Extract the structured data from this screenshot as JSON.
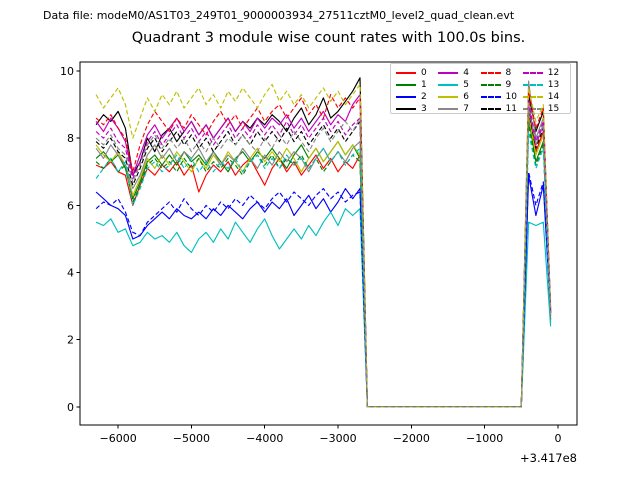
{
  "header": {
    "datafile": "Data file: modeM0/AS1T03_249T01_9000003934_27511cztM0_level2_quad_clean.evt"
  },
  "colors": {
    "background": "#ffffff",
    "axes": "#000000",
    "legend_border": "#cccccc"
  },
  "chart_data": {
    "type": "line",
    "title": "Quadrant 3 module wise count rates with 100.0s bins.",
    "xlabel": "",
    "ylabel": "",
    "x_offset_label": "+3.417e8",
    "xlim": [
      -6520,
      260
    ],
    "ylim": [
      -0.54,
      10.27
    ],
    "grid": false,
    "legend_position": "upper right",
    "x_ticks": [
      {
        "value": -6000,
        "label": "−6000"
      },
      {
        "value": -5000,
        "label": "−5000"
      },
      {
        "value": -4000,
        "label": "−4000"
      },
      {
        "value": -3000,
        "label": "−3000"
      },
      {
        "value": -2000,
        "label": "−2000"
      },
      {
        "value": -1000,
        "label": "−1000"
      },
      {
        "value": 0,
        "label": "0"
      }
    ],
    "y_ticks": [
      {
        "value": 0,
        "label": "0"
      },
      {
        "value": 2,
        "label": "2"
      },
      {
        "value": 4,
        "label": "4"
      },
      {
        "value": 6,
        "label": "6"
      },
      {
        "value": 8,
        "label": "8"
      },
      {
        "value": 10,
        "label": "10"
      }
    ],
    "x_start": -6300,
    "x_step": 100,
    "series": [
      {
        "name": "0",
        "color": "#ff0000",
        "dash": false,
        "values": [
          7.2,
          7.1,
          7.3,
          7.0,
          6.9,
          6.0,
          6.6,
          7.1,
          6.9,
          7.2,
          7.0,
          7.3,
          6.9,
          7.2,
          6.4,
          6.9,
          7.2,
          7.0,
          7.3,
          6.9,
          7.2,
          7.4,
          7.0,
          6.6,
          7.1,
          7.4,
          7.0,
          7.3,
          6.9,
          7.2,
          7.5,
          7.1,
          7.4,
          7.0,
          7.3,
          7.1,
          7.5,
          0,
          0,
          0,
          0,
          0,
          0,
          0,
          0,
          0,
          0,
          0,
          0,
          0,
          0,
          0,
          0,
          0,
          0,
          0,
          0,
          0,
          0,
          8.9,
          7.6,
          8.2,
          2.6
        ]
      },
      {
        "name": "1",
        "color": "#008000",
        "dash": false,
        "values": [
          7.4,
          7.6,
          7.3,
          7.5,
          7.1,
          6.2,
          6.7,
          7.3,
          7.5,
          7.2,
          7.5,
          7.2,
          7.6,
          7.3,
          7.5,
          7.2,
          7.6,
          7.3,
          7.0,
          7.4,
          7.6,
          7.3,
          7.6,
          7.4,
          7.7,
          7.4,
          7.1,
          7.5,
          7.8,
          7.4,
          7.7,
          7.3,
          7.6,
          7.9,
          7.5,
          7.8,
          7.4,
          0,
          0,
          0,
          0,
          0,
          0,
          0,
          0,
          0,
          0,
          0,
          0,
          0,
          0,
          0,
          0,
          0,
          0,
          0,
          0,
          0,
          0,
          8.6,
          7.3,
          7.9,
          2.7
        ]
      },
      {
        "name": "2",
        "color": "#0000ff",
        "dash": false,
        "values": [
          6.4,
          6.2,
          6.0,
          5.9,
          5.7,
          5.0,
          5.1,
          5.4,
          5.6,
          5.8,
          5.6,
          5.9,
          5.7,
          5.6,
          5.8,
          5.6,
          5.9,
          5.7,
          6.0,
          5.8,
          5.6,
          5.9,
          6.1,
          5.8,
          6.1,
          5.9,
          6.2,
          5.7,
          6.0,
          6.3,
          5.9,
          6.2,
          5.8,
          6.1,
          6.5,
          6.2,
          6.5,
          0,
          0,
          0,
          0,
          0,
          0,
          0,
          0,
          0,
          0,
          0,
          0,
          0,
          0,
          0,
          0,
          0,
          0,
          0,
          0,
          0,
          0,
          6.9,
          5.7,
          6.6,
          2.8
        ]
      },
      {
        "name": "3",
        "color": "#000000",
        "dash": false,
        "values": [
          8.4,
          8.7,
          8.5,
          8.8,
          8.3,
          6.9,
          7.3,
          8.0,
          7.6,
          8.1,
          8.3,
          7.9,
          8.2,
          8.5,
          8.1,
          8.4,
          8.0,
          8.3,
          8.6,
          8.2,
          8.5,
          8.3,
          8.6,
          8.4,
          8.7,
          8.5,
          8.2,
          8.6,
          8.9,
          8.4,
          8.7,
          9.2,
          8.6,
          8.8,
          9.1,
          9.4,
          9.8,
          0,
          0,
          0,
          0,
          0,
          0,
          0,
          0,
          0,
          0,
          0,
          0,
          0,
          0,
          0,
          0,
          0,
          0,
          0,
          0,
          0,
          0,
          9.3,
          8.2,
          8.8,
          2.9
        ]
      },
      {
        "name": "4",
        "color": "#bf00bf",
        "dash": false,
        "values": [
          8.5,
          8.2,
          8.6,
          8.3,
          7.9,
          6.9,
          7.5,
          8.1,
          8.4,
          8.0,
          8.3,
          8.6,
          8.2,
          8.5,
          8.1,
          8.4,
          8.0,
          8.3,
          8.6,
          8.2,
          8.5,
          8.2,
          8.6,
          8.3,
          8.6,
          8.4,
          8.7,
          8.3,
          8.6,
          8.2,
          8.5,
          8.8,
          8.4,
          8.7,
          8.5,
          9.0,
          9.3,
          0,
          0,
          0,
          0,
          0,
          0,
          0,
          0,
          0,
          0,
          0,
          0,
          0,
          0,
          0,
          0,
          0,
          0,
          0,
          0,
          0,
          0,
          9.0,
          7.8,
          8.4,
          2.8
        ]
      },
      {
        "name": "5",
        "color": "#00bfbf",
        "dash": false,
        "values": [
          5.5,
          5.4,
          5.6,
          5.2,
          5.3,
          4.8,
          4.9,
          5.2,
          5.0,
          5.1,
          4.9,
          5.2,
          4.8,
          4.6,
          5.0,
          5.2,
          4.9,
          5.3,
          5.0,
          5.5,
          5.2,
          4.9,
          5.3,
          5.6,
          5.1,
          4.7,
          5.0,
          5.3,
          5.0,
          5.4,
          5.1,
          5.5,
          5.8,
          5.4,
          5.9,
          5.7,
          5.9,
          0,
          0,
          0,
          0,
          0,
          0,
          0,
          0,
          0,
          0,
          0,
          0,
          0,
          0,
          0,
          0,
          0,
          0,
          0,
          0,
          0,
          0,
          5.5,
          5.4,
          5.5,
          2.4
        ]
      },
      {
        "name": "6",
        "color": "#bfbf00",
        "dash": false,
        "values": [
          7.8,
          7.5,
          7.3,
          7.6,
          7.2,
          6.3,
          6.8,
          7.4,
          7.1,
          7.5,
          7.2,
          7.6,
          7.3,
          7.0,
          7.4,
          7.1,
          7.5,
          7.2,
          7.6,
          7.3,
          7.0,
          7.4,
          7.7,
          7.3,
          7.6,
          7.3,
          7.7,
          7.4,
          7.0,
          7.4,
          7.7,
          7.3,
          7.6,
          7.9,
          7.5,
          7.8,
          7.5,
          0,
          0,
          0,
          0,
          0,
          0,
          0,
          0,
          0,
          0,
          0,
          0,
          0,
          0,
          0,
          0,
          0,
          0,
          0,
          0,
          0,
          0,
          8.7,
          7.5,
          8.1,
          2.7
        ]
      },
      {
        "name": "7",
        "color": "#888888",
        "dash": false,
        "values": [
          7.7,
          7.4,
          7.8,
          7.5,
          7.2,
          6.5,
          6.9,
          7.5,
          7.8,
          7.4,
          7.7,
          7.3,
          7.6,
          7.4,
          7.7,
          7.3,
          7.6,
          7.2,
          7.5,
          7.3,
          7.7,
          7.4,
          7.1,
          7.5,
          7.2,
          7.6,
          7.3,
          7.6,
          7.4,
          7.0,
          7.4,
          7.7,
          7.3,
          7.6,
          7.3,
          7.7,
          7.9,
          0,
          0,
          0,
          0,
          0,
          0,
          0,
          0,
          0,
          0,
          0,
          0,
          0,
          0,
          0,
          0,
          0,
          0,
          0,
          0,
          0,
          0,
          9.7,
          8.0,
          8.6,
          3.0
        ]
      },
      {
        "name": "8",
        "color": "#ff0000",
        "dash": true,
        "values": [
          8.6,
          8.4,
          8.7,
          8.3,
          8.0,
          7.0,
          7.8,
          8.4,
          8.8,
          8.5,
          8.2,
          8.6,
          8.3,
          8.7,
          8.4,
          8.1,
          8.5,
          8.8,
          8.4,
          8.7,
          8.3,
          8.6,
          8.9,
          8.5,
          8.8,
          9.0,
          8.6,
          8.9,
          9.2,
          8.7,
          9.0,
          8.6,
          9.3,
          8.9,
          9.2,
          8.9,
          9.2,
          0,
          0,
          0,
          0,
          0,
          0,
          0,
          0,
          0,
          0,
          0,
          0,
          0,
          0,
          0,
          0,
          0,
          0,
          0,
          0,
          0,
          0,
          9.4,
          8.3,
          8.9,
          2.9
        ]
      },
      {
        "name": "9",
        "color": "#008000",
        "dash": true,
        "values": [
          7.3,
          7.1,
          7.4,
          7.0,
          7.2,
          6.1,
          6.6,
          7.2,
          7.4,
          7.1,
          7.3,
          7.0,
          7.4,
          7.1,
          7.4,
          7.0,
          7.3,
          7.1,
          7.4,
          7.2,
          6.9,
          7.3,
          7.5,
          7.2,
          7.5,
          7.1,
          7.4,
          7.2,
          7.5,
          7.1,
          7.4,
          7.0,
          7.3,
          7.6,
          7.2,
          7.5,
          7.3,
          0,
          0,
          0,
          0,
          0,
          0,
          0,
          0,
          0,
          0,
          0,
          0,
          0,
          0,
          0,
          0,
          0,
          0,
          0,
          0,
          0,
          0,
          8.4,
          7.2,
          7.8,
          2.6
        ]
      },
      {
        "name": "10",
        "color": "#0000ff",
        "dash": true,
        "values": [
          5.9,
          6.1,
          6.0,
          6.2,
          5.8,
          5.2,
          5.1,
          5.5,
          5.7,
          5.9,
          6.1,
          5.8,
          6.2,
          5.9,
          5.7,
          6.0,
          5.8,
          6.1,
          5.9,
          6.2,
          6.0,
          6.3,
          6.1,
          5.9,
          6.2,
          6.4,
          6.1,
          6.4,
          6.2,
          6.0,
          6.3,
          6.5,
          6.2,
          6.4,
          6.1,
          6.3,
          6.4,
          0,
          0,
          0,
          0,
          0,
          0,
          0,
          0,
          0,
          0,
          0,
          0,
          0,
          0,
          0,
          0,
          0,
          0,
          0,
          0,
          0,
          0,
          7.0,
          6.0,
          6.7,
          2.9
        ]
      },
      {
        "name": "11",
        "color": "#000000",
        "dash": true,
        "values": [
          7.9,
          7.7,
          8.0,
          7.6,
          7.4,
          6.6,
          7.1,
          7.7,
          8.0,
          7.6,
          7.9,
          8.2,
          7.8,
          8.1,
          7.7,
          8.0,
          7.6,
          7.9,
          8.2,
          7.8,
          8.1,
          7.8,
          8.2,
          7.9,
          8.2,
          7.9,
          8.3,
          7.9,
          8.2,
          7.8,
          8.1,
          8.4,
          8.0,
          8.3,
          7.9,
          8.2,
          8.5,
          0,
          0,
          0,
          0,
          0,
          0,
          0,
          0,
          0,
          0,
          0,
          0,
          0,
          0,
          0,
          0,
          0,
          0,
          0,
          0,
          0,
          0,
          8.8,
          7.7,
          8.3,
          2.8
        ]
      },
      {
        "name": "12",
        "color": "#bf00bf",
        "dash": true,
        "values": [
          8.2,
          8.0,
          8.3,
          7.9,
          7.7,
          6.8,
          7.3,
          7.9,
          8.2,
          7.8,
          8.1,
          8.4,
          8.0,
          8.3,
          7.9,
          8.2,
          7.8,
          8.1,
          8.4,
          8.0,
          8.3,
          8.0,
          8.4,
          8.1,
          8.4,
          8.1,
          8.5,
          8.1,
          8.4,
          8.0,
          8.3,
          8.6,
          8.2,
          8.5,
          8.1,
          8.4,
          8.6,
          0,
          0,
          0,
          0,
          0,
          0,
          0,
          0,
          0,
          0,
          0,
          0,
          0,
          0,
          0,
          0,
          0,
          0,
          0,
          0,
          0,
          0,
          9.1,
          7.9,
          8.5,
          2.8
        ]
      },
      {
        "name": "13",
        "color": "#00bfbf",
        "dash": true,
        "values": [
          6.8,
          7.1,
          7.4,
          7.0,
          7.3,
          6.0,
          6.5,
          7.1,
          7.3,
          7.0,
          7.2,
          7.5,
          7.1,
          7.4,
          7.0,
          7.3,
          7.0,
          7.3,
          7.1,
          7.4,
          7.0,
          7.3,
          7.5,
          7.1,
          7.4,
          7.1,
          7.5,
          7.2,
          7.4,
          7.1,
          7.4,
          7.7,
          7.3,
          7.6,
          7.2,
          7.5,
          7.7,
          0,
          0,
          0,
          0,
          0,
          0,
          0,
          0,
          0,
          0,
          0,
          0,
          0,
          0,
          0,
          0,
          0,
          0,
          0,
          0,
          0,
          0,
          8.2,
          7.1,
          7.7,
          2.5
        ]
      },
      {
        "name": "14",
        "color": "#bfbf00",
        "dash": true,
        "values": [
          9.3,
          8.9,
          9.2,
          9.5,
          9.0,
          8.0,
          8.6,
          9.2,
          8.8,
          9.3,
          9.0,
          9.4,
          8.9,
          9.2,
          9.5,
          9.0,
          9.3,
          8.9,
          9.4,
          9.1,
          9.5,
          9.2,
          8.9,
          9.3,
          9.6,
          9.1,
          9.4,
          9.0,
          9.3,
          8.9,
          9.2,
          9.5,
          9.1,
          9.4,
          9.0,
          9.3,
          9.6,
          0,
          0,
          0,
          0,
          0,
          0,
          0,
          0,
          0,
          0,
          0,
          0,
          0,
          0,
          0,
          0,
          0,
          0,
          0,
          0,
          0,
          0,
          9.5,
          8.5,
          9.0,
          2.9
        ]
      },
      {
        "name": "15",
        "color": "#888888",
        "dash": true,
        "values": [
          8.0,
          7.8,
          8.1,
          7.7,
          7.5,
          6.7,
          7.2,
          7.8,
          8.1,
          7.7,
          8.0,
          7.7,
          8.0,
          7.6,
          7.9,
          7.6,
          8.0,
          7.7,
          8.0,
          7.8,
          8.1,
          7.8,
          7.6,
          8.0,
          7.7,
          8.1,
          7.8,
          8.2,
          7.9,
          7.6,
          8.0,
          8.3,
          7.9,
          8.2,
          8.5,
          8.2,
          8.6,
          0,
          0,
          0,
          0,
          0,
          0,
          0,
          0,
          0,
          0,
          0,
          0,
          0,
          0,
          0,
          0,
          0,
          0,
          0,
          0,
          0,
          0,
          8.9,
          7.8,
          8.4,
          2.7
        ]
      }
    ]
  }
}
